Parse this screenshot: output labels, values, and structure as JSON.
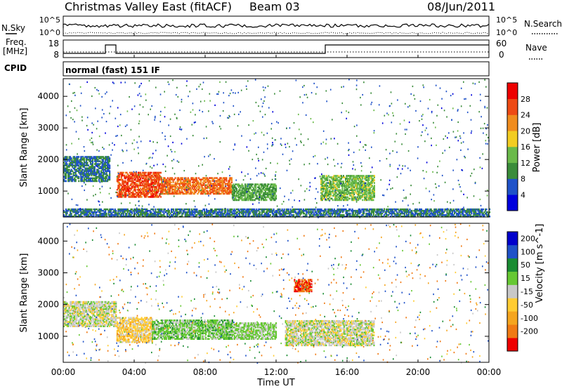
{
  "header": {
    "title": "Christmas Valley East (fitACF)",
    "beam": "Beam 03",
    "date": "08/Jun/2011"
  },
  "nsky_panel": {
    "left_label": "N.Sky",
    "left_ticks": [
      "10^5",
      "10^0"
    ],
    "right_label": "N.Search",
    "right_ticks": [
      "10^5",
      "10^0"
    ]
  },
  "freq_panel": {
    "left_label_line1": "Freq.",
    "left_label_line2": "[MHz]",
    "left_ticks": [
      "18",
      "8"
    ],
    "right_label": "Nave",
    "right_ticks": [
      "60",
      "0"
    ]
  },
  "cpid": {
    "label": "CPID",
    "value": "normal (fast) 151 IF"
  },
  "colors": {
    "power": [
      "#0000dd",
      "#1f52c8",
      "#3a8c3a",
      "#6aba4a",
      "#f2cc22",
      "#f08c1e",
      "#ee4a14",
      "#ee0000"
    ],
    "velocity": [
      "#ee0000",
      "#f07a14",
      "#f5a51f",
      "#ffcc33",
      "#c8c8c8",
      "#66c833",
      "#1a8c33",
      "#1f52c8",
      "#0000cc"
    ]
  },
  "chart_data": [
    {
      "type": "heatmap",
      "name": "power",
      "ylabel": "Slant Range [km]",
      "yticks": [
        "1000",
        "2000",
        "3000",
        "4000"
      ],
      "ylim": [
        180,
        4560
      ],
      "xlim": [
        0,
        24
      ],
      "colorbar_label": "Power [dB]",
      "colorbar_ticks": [
        "4",
        "8",
        "12",
        "16",
        "20",
        "24",
        "28"
      ],
      "colorbar_range": [
        0,
        32
      ],
      "approx_features": [
        {
          "t_start": 0.0,
          "t_end": 2.6,
          "range_low": 1300,
          "range_high": 2100,
          "level_db": 8
        },
        {
          "t_start": 3.0,
          "t_end": 5.5,
          "range_low": 800,
          "range_high": 1600,
          "level_db": 26
        },
        {
          "t_start": 5.5,
          "t_end": 9.5,
          "range_low": 900,
          "range_high": 1400,
          "level_db": 24
        },
        {
          "t_start": 9.5,
          "t_end": 12.0,
          "range_low": 700,
          "range_high": 1200,
          "level_db": 12
        },
        {
          "t_start": 14.5,
          "t_end": 17.5,
          "range_low": 700,
          "range_high": 1500,
          "level_db": 14
        },
        {
          "t_start": 0.0,
          "t_end": 24.0,
          "range_low": 180,
          "range_high": 450,
          "level_db": 8
        }
      ]
    },
    {
      "type": "heatmap",
      "name": "velocity",
      "ylabel": "Slant Range [km]",
      "yticks": [
        "1000",
        "2000",
        "3000",
        "4000"
      ],
      "ylim": [
        180,
        4560
      ],
      "xlim": [
        0,
        24
      ],
      "xlabel": "Time UT",
      "xticks": [
        "00:00",
        "04:00",
        "08:00",
        "12:00",
        "16:00",
        "20:00",
        "00:00"
      ],
      "colorbar_label": "Velocity [m s^-1]",
      "colorbar_ticks": [
        "200",
        "100",
        "50",
        "15",
        "-15",
        "-50",
        "-100",
        "-200"
      ],
      "colorbar_range": [
        -250,
        250
      ],
      "approx_features": [
        {
          "t_start": 0.0,
          "t_end": 3.0,
          "range_low": 1300,
          "range_high": 2100,
          "velocity": 0
        },
        {
          "t_start": 3.0,
          "t_end": 5.0,
          "range_low": 800,
          "range_high": 1600,
          "velocity": -30
        },
        {
          "t_start": 5.0,
          "t_end": 9.5,
          "range_low": 900,
          "range_high": 1500,
          "velocity": 30
        },
        {
          "t_start": 9.5,
          "t_end": 12.0,
          "range_low": 900,
          "range_high": 1400,
          "velocity": 20
        },
        {
          "t_start": 12.5,
          "t_end": 17.5,
          "range_low": 700,
          "range_high": 1500,
          "velocity": 0
        },
        {
          "t_start": 13.0,
          "t_end": 14.0,
          "range_low": 2400,
          "range_high": 2800,
          "velocity": -200
        }
      ]
    }
  ]
}
